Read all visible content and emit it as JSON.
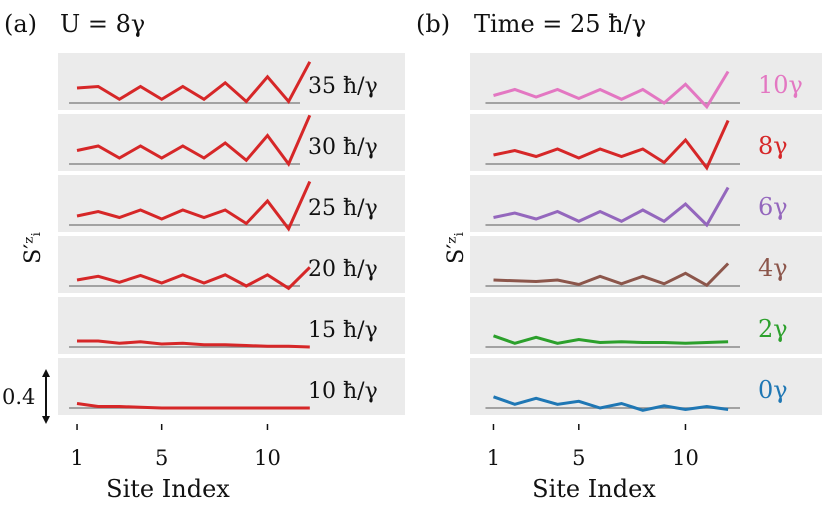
{
  "chart_data": [
    {
      "panel_label": "(a)",
      "title": "U = 8γ",
      "type": "line",
      "xlabel": "Site Index",
      "ylabel": "S′ᶻᵢ",
      "xticks": [
        "1",
        "5",
        "10"
      ],
      "xlim": [
        0.1,
        16.5
      ],
      "scale_bar": {
        "label": "0.4",
        "value": 0.4
      },
      "series": [
        {
          "name": "35 ħ/γ",
          "color": "#d62728",
          "x": [
            1,
            2,
            3,
            4,
            5,
            6,
            7,
            8,
            9,
            10,
            11,
            12
          ],
          "values": [
            0.2,
            0.22,
            0.05,
            0.22,
            0.05,
            0.22,
            0.05,
            0.27,
            0.02,
            0.35,
            0.02,
            0.55
          ]
        },
        {
          "name": "30 ħ/γ",
          "color": "#d62728",
          "x": [
            1,
            2,
            3,
            4,
            5,
            6,
            7,
            8,
            9,
            10,
            11,
            12
          ],
          "values": [
            0.18,
            0.24,
            0.08,
            0.24,
            0.08,
            0.24,
            0.08,
            0.28,
            0.05,
            0.38,
            0.0,
            0.65
          ]
        },
        {
          "name": "25 ħ/γ",
          "color": "#d62728",
          "x": [
            1,
            2,
            3,
            4,
            5,
            6,
            7,
            8,
            9,
            10,
            11,
            12
          ],
          "values": [
            0.12,
            0.18,
            0.1,
            0.2,
            0.08,
            0.2,
            0.1,
            0.2,
            0.02,
            0.32,
            -0.05,
            0.58
          ]
        },
        {
          "name": "20 ħ/γ",
          "color": "#d62728",
          "x": [
            1,
            2,
            3,
            4,
            5,
            6,
            7,
            8,
            9,
            10,
            11,
            12
          ],
          "values": [
            0.08,
            0.13,
            0.05,
            0.14,
            0.04,
            0.15,
            0.04,
            0.15,
            0.0,
            0.15,
            -0.03,
            0.25
          ]
        },
        {
          "name": "15 ħ/γ",
          "color": "#d62728",
          "x": [
            1,
            2,
            3,
            4,
            5,
            6,
            7,
            8,
            9,
            10,
            11,
            12
          ],
          "values": [
            0.08,
            0.08,
            0.05,
            0.07,
            0.04,
            0.05,
            0.03,
            0.03,
            0.02,
            0.01,
            0.01,
            0.0
          ]
        },
        {
          "name": "10 ħ/γ",
          "color": "#d62728",
          "x": [
            1,
            2,
            3,
            4,
            5,
            6,
            7,
            8,
            9,
            10,
            11,
            12
          ],
          "values": [
            0.06,
            0.02,
            0.02,
            0.01,
            0.0,
            0.0,
            0.0,
            0.0,
            0.0,
            0.0,
            0.0,
            0.0
          ]
        }
      ]
    },
    {
      "panel_label": "(b)",
      "title": "Time = 25 ħ/γ",
      "type": "line",
      "xlabel": "Site Index",
      "ylabel": "S′ᶻᵢ",
      "xticks": [
        "1",
        "5",
        "10"
      ],
      "xlim": [
        -0.1,
        16.4
      ],
      "series": [
        {
          "name": "10γ",
          "color": "#e377c2",
          "x": [
            1,
            2,
            3,
            4,
            5,
            6,
            7,
            8,
            9,
            10,
            11,
            12
          ],
          "values": [
            0.1,
            0.18,
            0.08,
            0.18,
            0.06,
            0.18,
            0.05,
            0.18,
            0.0,
            0.25,
            -0.05,
            0.42
          ]
        },
        {
          "name": "8γ",
          "color": "#d62728",
          "x": [
            1,
            2,
            3,
            4,
            5,
            6,
            7,
            8,
            9,
            10,
            11,
            12
          ],
          "values": [
            0.12,
            0.18,
            0.1,
            0.2,
            0.08,
            0.2,
            0.1,
            0.2,
            0.02,
            0.32,
            -0.05,
            0.58
          ]
        },
        {
          "name": "6γ",
          "color": "#9467bd",
          "x": [
            1,
            2,
            3,
            4,
            5,
            6,
            7,
            8,
            9,
            10,
            11,
            12
          ],
          "values": [
            0.1,
            0.16,
            0.08,
            0.18,
            0.05,
            0.18,
            0.05,
            0.2,
            0.05,
            0.28,
            0.0,
            0.5
          ]
        },
        {
          "name": "4γ",
          "color": "#8c564b",
          "x": [
            1,
            2,
            3,
            4,
            5,
            6,
            7,
            8,
            9,
            10,
            11,
            12
          ],
          "values": [
            0.08,
            0.07,
            0.06,
            0.08,
            0.02,
            0.13,
            0.03,
            0.13,
            0.03,
            0.17,
            0.01,
            0.3
          ]
        },
        {
          "name": "2γ",
          "color": "#2ca02c",
          "x": [
            1,
            2,
            3,
            4,
            5,
            6,
            7,
            8,
            9,
            10,
            11,
            12
          ],
          "values": [
            0.15,
            0.05,
            0.13,
            0.05,
            0.1,
            0.06,
            0.07,
            0.06,
            0.06,
            0.05,
            0.06,
            0.07
          ]
        },
        {
          "name": "0γ",
          "color": "#1f77b4",
          "x": [
            1,
            2,
            3,
            4,
            5,
            6,
            7,
            8,
            9,
            10,
            11,
            12
          ],
          "values": [
            0.15,
            0.05,
            0.13,
            0.05,
            0.09,
            0.0,
            0.06,
            -0.03,
            0.03,
            -0.02,
            0.02,
            -0.02
          ]
        }
      ]
    }
  ]
}
